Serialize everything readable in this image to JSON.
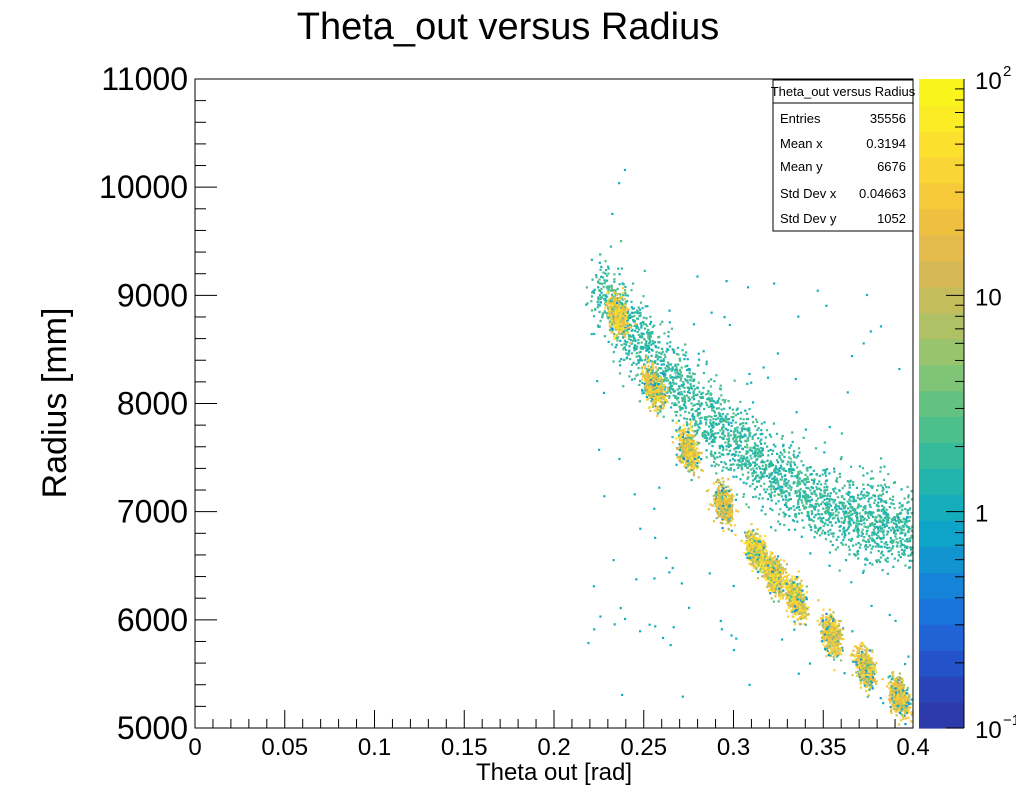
{
  "chart_data": {
    "type": "heatmap",
    "title": "Theta_out versus Radius",
    "xlabel": "Theta out [rad]",
    "ylabel": "Radius [mm]",
    "xlim": [
      0,
      0.4
    ],
    "ylim": [
      5000,
      11000
    ],
    "x_ticks": [
      {
        "value": 0,
        "label": "0"
      },
      {
        "value": 0.05,
        "label": "0.05"
      },
      {
        "value": 0.1,
        "label": "0.1"
      },
      {
        "value": 0.15,
        "label": "0.15"
      },
      {
        "value": 0.2,
        "label": "0.2"
      },
      {
        "value": 0.25,
        "label": "0.25"
      },
      {
        "value": 0.3,
        "label": "0.3"
      },
      {
        "value": 0.35,
        "label": "0.35"
      },
      {
        "value": 0.4,
        "label": "0.4"
      }
    ],
    "y_ticks": [
      {
        "value": 5000,
        "label": "5000"
      },
      {
        "value": 6000,
        "label": "6000"
      },
      {
        "value": 7000,
        "label": "7000"
      },
      {
        "value": 8000,
        "label": "8000"
      },
      {
        "value": 9000,
        "label": "9000"
      },
      {
        "value": 10000,
        "label": "10000"
      },
      {
        "value": 11000,
        "label": "11000"
      }
    ],
    "z_scale": "log",
    "zlim": [
      0.1,
      100
    ],
    "z_ticks": [
      {
        "value": 100,
        "base": "10",
        "exp": "2"
      },
      {
        "value": 10,
        "base": "10",
        "exp": ""
      },
      {
        "value": 1,
        "base": "1",
        "exp": ""
      },
      {
        "value": 0.1,
        "base": "10",
        "exp": "−1"
      }
    ],
    "palette": [
      "#2b3aa8",
      "#2844b8",
      "#2452c8",
      "#1f63d6",
      "#1a74dc",
      "#1584d8",
      "#1294d0",
      "#0ea3c8",
      "#15adbc",
      "#22b5ad",
      "#35bb9c",
      "#4cbf8c",
      "#63c27f",
      "#7fc477",
      "#98c46e",
      "#b0c165",
      "#c5bd5c",
      "#d6b956",
      "#e4bb4c",
      "#efc040",
      "#f6c93a",
      "#f9d535",
      "#fbe12e",
      "#fbec26",
      "#f9f51c"
    ],
    "clusters": [
      {
        "x": 0.235,
        "y": 8830,
        "peak": 60
      },
      {
        "x": 0.255,
        "y": 8150,
        "peak": 55
      },
      {
        "x": 0.274,
        "y": 7580,
        "peak": 55
      },
      {
        "x": 0.294,
        "y": 7080,
        "peak": 45
      },
      {
        "x": 0.312,
        "y": 6640,
        "peak": 70
      },
      {
        "x": 0.322,
        "y": 6430,
        "peak": 65
      },
      {
        "x": 0.334,
        "y": 6200,
        "peak": 65
      },
      {
        "x": 0.354,
        "y": 5870,
        "peak": 50
      },
      {
        "x": 0.373,
        "y": 5560,
        "peak": 50
      },
      {
        "x": 0.392,
        "y": 5290,
        "peak": 45
      }
    ],
    "stats": {
      "name": "Theta_out versus Radius",
      "rows": [
        {
          "label": "Entries",
          "value": "35556"
        },
        {
          "label": "Mean x",
          "value": "0.3194"
        },
        {
          "label": "Mean y",
          "value": "6676"
        },
        {
          "label": "Std Dev x",
          "value": "0.04663"
        },
        {
          "label": "Std Dev y",
          "value": "1052"
        }
      ]
    }
  }
}
